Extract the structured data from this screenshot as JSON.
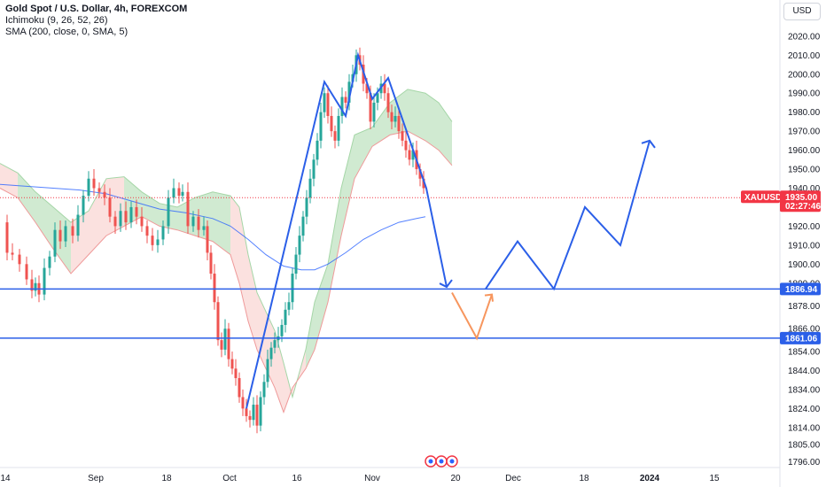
{
  "legend": {
    "title": "Gold Spot / U.S. Dollar, 4h, FOREXCOM",
    "ichimoku": "Ichimoku (9, 26, 52, 26)",
    "sma": "SMA (200, close, 0, SMA, 5)"
  },
  "currency_button": "USD",
  "colors": {
    "up": "#26a69a",
    "down": "#ef5350",
    "sma": "#2962ff",
    "drawing": "#2b5fe8",
    "projection": "#f7965e",
    "cloud_bull": "#c8e6c9",
    "cloud_bear": "#fadcd9",
    "current_price": "#f23645"
  },
  "chart_data": {
    "type": "candlestick",
    "symbol": "XAUUSD",
    "timeframe": "4h",
    "ylim": [
      1792,
      2026
    ],
    "y_ticks": [
      1796.0,
      1805.0,
      1814.0,
      1824.0,
      1834.0,
      1844.0,
      1854.0,
      1866.0,
      1878.0,
      1890.0,
      1900.0,
      1910.0,
      1920.0,
      1940.0,
      1950.0,
      1960.0,
      1970.0,
      1980.0,
      1990.0,
      2000.0,
      2010.0,
      2020.0
    ],
    "x_ticks": [
      {
        "label": "14",
        "x": 6
      },
      {
        "label": "Sep",
        "x": 108
      },
      {
        "label": "18",
        "x": 188
      },
      {
        "label": "Oct",
        "x": 259
      },
      {
        "label": "16",
        "x": 335
      },
      {
        "label": "Nov",
        "x": 420
      },
      {
        "label": "20",
        "x": 514
      },
      {
        "label": "Dec",
        "x": 579
      },
      {
        "label": "18",
        "x": 659
      },
      {
        "label": "2024",
        "x": 733
      },
      {
        "label": "15",
        "x": 806
      }
    ],
    "current_price": {
      "symbol": "XAUUSD",
      "price": "1935.00",
      "countdown": "02:27:46",
      "value": 1935.0
    },
    "levels": [
      {
        "label": "1886.94",
        "value": 1886.94
      },
      {
        "label": "1861.06",
        "value": 1861.06
      }
    ],
    "candle_path": [
      [
        0,
        1922
      ],
      [
        8,
        1906
      ],
      [
        14,
        1905
      ],
      [
        22,
        1900
      ],
      [
        30,
        1892
      ],
      [
        36,
        1886
      ],
      [
        40,
        1890
      ],
      [
        44,
        1884
      ],
      [
        50,
        1898
      ],
      [
        56,
        1904
      ],
      [
        62,
        1918
      ],
      [
        68,
        1912
      ],
      [
        74,
        1920
      ],
      [
        82,
        1915
      ],
      [
        88,
        1926
      ],
      [
        94,
        1936
      ],
      [
        100,
        1945
      ],
      [
        106,
        1940
      ],
      [
        112,
        1938
      ],
      [
        118,
        1935
      ],
      [
        124,
        1925
      ],
      [
        130,
        1920
      ],
      [
        136,
        1928
      ],
      [
        142,
        1922
      ],
      [
        148,
        1930
      ],
      [
        154,
        1925
      ],
      [
        160,
        1920
      ],
      [
        166,
        1915
      ],
      [
        172,
        1910
      ],
      [
        178,
        1913
      ],
      [
        184,
        1920
      ],
      [
        190,
        1935
      ],
      [
        196,
        1940
      ],
      [
        202,
        1936
      ],
      [
        206,
        1938
      ],
      [
        212,
        1920
      ],
      [
        218,
        1925
      ],
      [
        224,
        1918
      ],
      [
        230,
        1920
      ],
      [
        234,
        1906
      ],
      [
        238,
        1895
      ],
      [
        242,
        1880
      ],
      [
        246,
        1860
      ],
      [
        250,
        1855
      ],
      [
        254,
        1866
      ],
      [
        258,
        1850
      ],
      [
        262,
        1845
      ],
      [
        266,
        1840
      ],
      [
        270,
        1830
      ],
      [
        274,
        1824
      ],
      [
        278,
        1820
      ],
      [
        282,
        1818
      ],
      [
        286,
        1826
      ],
      [
        290,
        1815
      ],
      [
        294,
        1830
      ],
      [
        298,
        1838
      ],
      [
        302,
        1850
      ],
      [
        306,
        1856
      ],
      [
        310,
        1860
      ],
      [
        314,
        1862
      ],
      [
        318,
        1868
      ],
      [
        322,
        1876
      ],
      [
        326,
        1880
      ],
      [
        330,
        1895
      ],
      [
        334,
        1905
      ],
      [
        338,
        1915
      ],
      [
        342,
        1925
      ],
      [
        346,
        1935
      ],
      [
        350,
        1945
      ],
      [
        354,
        1955
      ],
      [
        358,
        1965
      ],
      [
        362,
        1980
      ],
      [
        366,
        1990
      ],
      [
        370,
        1978
      ],
      [
        374,
        1970
      ],
      [
        378,
        1965
      ],
      [
        382,
        1978
      ],
      [
        386,
        1988
      ],
      [
        390,
        1985
      ],
      [
        394,
        1996
      ],
      [
        398,
        2000
      ],
      [
        402,
        2010
      ],
      [
        406,
        2005
      ],
      [
        410,
        1995
      ],
      [
        414,
        1990
      ],
      [
        418,
        1975
      ],
      [
        422,
        1985
      ],
      [
        426,
        1990
      ],
      [
        430,
        1995
      ],
      [
        434,
        1990
      ],
      [
        438,
        1980
      ],
      [
        442,
        1975
      ],
      [
        446,
        1978
      ],
      [
        450,
        1970
      ],
      [
        454,
        1965
      ],
      [
        458,
        1960
      ],
      [
        462,
        1955
      ],
      [
        466,
        1960
      ],
      [
        470,
        1950
      ],
      [
        474,
        1945
      ],
      [
        478,
        1940
      ]
    ],
    "sma_path": [
      [
        0,
        1942
      ],
      [
        30,
        1941
      ],
      [
        60,
        1940
      ],
      [
        90,
        1939
      ],
      [
        120,
        1937
      ],
      [
        150,
        1933
      ],
      [
        180,
        1929
      ],
      [
        210,
        1927
      ],
      [
        240,
        1924
      ],
      [
        260,
        1920
      ],
      [
        280,
        1913
      ],
      [
        300,
        1905
      ],
      [
        320,
        1899
      ],
      [
        340,
        1897
      ],
      [
        355,
        1897
      ],
      [
        370,
        1900
      ],
      [
        390,
        1906
      ],
      [
        410,
        1913
      ],
      [
        430,
        1918
      ],
      [
        450,
        1922
      ],
      [
        470,
        1924
      ],
      [
        480,
        1925
      ]
    ],
    "cloud_top": [
      [
        0,
        1953
      ],
      [
        20,
        1948
      ],
      [
        40,
        1938
      ],
      [
        60,
        1930
      ],
      [
        80,
        1922
      ],
      [
        100,
        1928
      ],
      [
        120,
        1945
      ],
      [
        140,
        1946
      ],
      [
        160,
        1938
      ],
      [
        180,
        1932
      ],
      [
        200,
        1930
      ],
      [
        220,
        1935
      ],
      [
        240,
        1938
      ],
      [
        260,
        1936
      ],
      [
        270,
        1930
      ],
      [
        280,
        1905
      ],
      [
        290,
        1885
      ],
      [
        300,
        1875
      ],
      [
        310,
        1865
      ],
      [
        320,
        1848
      ],
      [
        330,
        1830
      ],
      [
        345,
        1855
      ],
      [
        355,
        1880
      ],
      [
        370,
        1900
      ],
      [
        385,
        1940
      ],
      [
        400,
        1968
      ],
      [
        420,
        1972
      ],
      [
        440,
        1985
      ],
      [
        460,
        1992
      ],
      [
        480,
        1990
      ],
      [
        495,
        1985
      ],
      [
        510,
        1975
      ]
    ],
    "cloud_bottom": [
      [
        0,
        1940
      ],
      [
        20,
        1935
      ],
      [
        40,
        1922
      ],
      [
        60,
        1908
      ],
      [
        80,
        1895
      ],
      [
        100,
        1905
      ],
      [
        120,
        1915
      ],
      [
        140,
        1920
      ],
      [
        160,
        1925
      ],
      [
        180,
        1920
      ],
      [
        200,
        1918
      ],
      [
        220,
        1915
      ],
      [
        240,
        1912
      ],
      [
        260,
        1905
      ],
      [
        270,
        1890
      ],
      [
        280,
        1870
      ],
      [
        290,
        1855
      ],
      [
        300,
        1845
      ],
      [
        310,
        1835
      ],
      [
        320,
        1822
      ],
      [
        330,
        1835
      ],
      [
        345,
        1845
      ],
      [
        355,
        1855
      ],
      [
        370,
        1880
      ],
      [
        385,
        1915
      ],
      [
        400,
        1945
      ],
      [
        420,
        1962
      ],
      [
        440,
        1968
      ],
      [
        460,
        1970
      ],
      [
        480,
        1965
      ],
      [
        495,
        1960
      ],
      [
        510,
        1952
      ]
    ],
    "drawing_path": [
      [
        278,
        1824
      ],
      [
        366,
        1996
      ],
      [
        390,
        1978
      ],
      [
        404,
        2010
      ],
      [
        420,
        1987
      ],
      [
        438,
        1998
      ],
      [
        481,
        1940
      ],
      [
        504,
        1888
      ]
    ],
    "drawing_projection": [
      [
        548,
        1887
      ],
      [
        584,
        1912
      ],
      [
        625,
        1887
      ],
      [
        660,
        1930
      ],
      [
        700,
        1910
      ],
      [
        733,
        1965
      ]
    ],
    "orange_projection": [
      [
        510,
        1885
      ],
      [
        538,
        1861
      ],
      [
        555,
        1884
      ]
    ]
  }
}
